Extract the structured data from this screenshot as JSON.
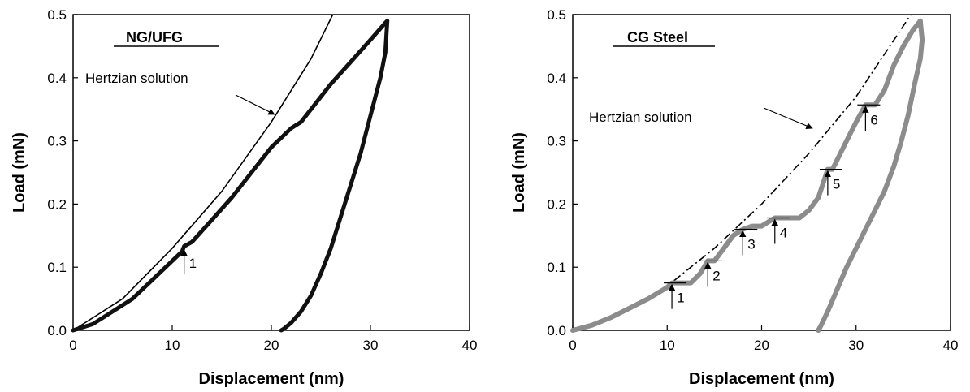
{
  "chart_data": [
    {
      "type": "line",
      "title": "NG/UFG",
      "xlabel": "Displacement (nm)",
      "ylabel": "Load (mN)",
      "xlim": [
        0,
        40
      ],
      "ylim": [
        0,
        0.5
      ],
      "xticks": [
        "0",
        "10",
        "20",
        "30",
        "40"
      ],
      "yticks": [
        "0.0",
        "0.1",
        "0.2",
        "0.3",
        "0.4",
        "0.5"
      ],
      "grid": false,
      "color": "#111111",
      "annotation": "Hertzian solution",
      "popins": [
        {
          "label": "1",
          "x": 11.2,
          "y": 0.13
        }
      ],
      "hertzian": {
        "x": [
          0,
          5,
          10,
          15,
          20,
          24,
          26.2
        ],
        "y": [
          0,
          0.05,
          0.13,
          0.22,
          0.33,
          0.43,
          0.5
        ]
      },
      "series": [
        {
          "x": [
            0,
            2,
            4,
            6,
            8,
            10,
            11,
            11.2,
            12,
            14,
            16,
            18,
            20,
            22,
            23,
            24,
            26,
            28,
            30,
            31,
            31.5,
            31.7
          ],
          "y": [
            0,
            0.01,
            0.03,
            0.05,
            0.08,
            0.11,
            0.125,
            0.133,
            0.14,
            0.175,
            0.21,
            0.25,
            0.29,
            0.32,
            0.33,
            0.35,
            0.39,
            0.425,
            0.46,
            0.478,
            0.487,
            0.49
          ]
        },
        {
          "x": [
            31.7,
            31.5,
            31,
            30,
            29,
            28,
            27,
            26,
            25,
            24,
            23,
            22,
            21.3,
            21
          ],
          "y": [
            0.49,
            0.44,
            0.4,
            0.34,
            0.28,
            0.23,
            0.18,
            0.13,
            0.09,
            0.055,
            0.03,
            0.012,
            0.003,
            0
          ]
        }
      ]
    },
    {
      "type": "line",
      "title": "CG Steel",
      "xlabel": "Displacement (nm)",
      "ylabel": "Load (mN)",
      "xlim": [
        0,
        40
      ],
      "ylim": [
        0,
        0.5
      ],
      "xticks": [
        "0",
        "10",
        "20",
        "30",
        "40"
      ],
      "yticks": [
        "0.0",
        "0.1",
        "0.2",
        "0.3",
        "0.4",
        "0.5"
      ],
      "grid": false,
      "color": "#8c8c8c",
      "annotation": "Hertzian solution",
      "popins": [
        {
          "label": "1",
          "x": 10.5,
          "y": 0.075
        },
        {
          "label": "2",
          "x": 14.3,
          "y": 0.11
        },
        {
          "label": "3",
          "x": 18,
          "y": 0.16
        },
        {
          "label": "4",
          "x": 21.4,
          "y": 0.178
        },
        {
          "label": "5",
          "x": 27,
          "y": 0.255
        },
        {
          "label": "6",
          "x": 31,
          "y": 0.357
        }
      ],
      "hertzian": {
        "x": [
          0,
          5,
          10,
          15,
          20,
          25,
          30,
          35.8
        ],
        "y": [
          0,
          0.025,
          0.07,
          0.13,
          0.2,
          0.28,
          0.37,
          0.5
        ]
      },
      "series": [
        {
          "x": [
            0,
            2,
            4,
            6,
            8,
            10,
            10.5,
            12.5,
            13.5,
            14.3,
            15,
            16,
            17,
            18,
            19,
            20,
            21.4,
            24,
            25,
            26,
            27,
            27.5,
            28,
            29,
            30,
            31,
            32,
            33,
            34,
            35,
            36,
            36.8
          ],
          "y": [
            0,
            0.008,
            0.02,
            0.035,
            0.05,
            0.068,
            0.075,
            0.075,
            0.09,
            0.11,
            0.11,
            0.13,
            0.15,
            0.16,
            0.165,
            0.165,
            0.178,
            0.178,
            0.19,
            0.21,
            0.255,
            0.255,
            0.27,
            0.3,
            0.33,
            0.357,
            0.357,
            0.38,
            0.42,
            0.45,
            0.475,
            0.49
          ]
        },
        {
          "x": [
            36.8,
            37,
            36.8,
            36.2,
            35.5,
            34.8,
            34,
            33,
            32,
            31,
            30,
            29,
            28,
            27,
            26.3,
            26
          ],
          "y": [
            0.49,
            0.46,
            0.43,
            0.39,
            0.34,
            0.3,
            0.26,
            0.22,
            0.19,
            0.16,
            0.13,
            0.1,
            0.065,
            0.03,
            0.008,
            0
          ]
        }
      ]
    }
  ]
}
